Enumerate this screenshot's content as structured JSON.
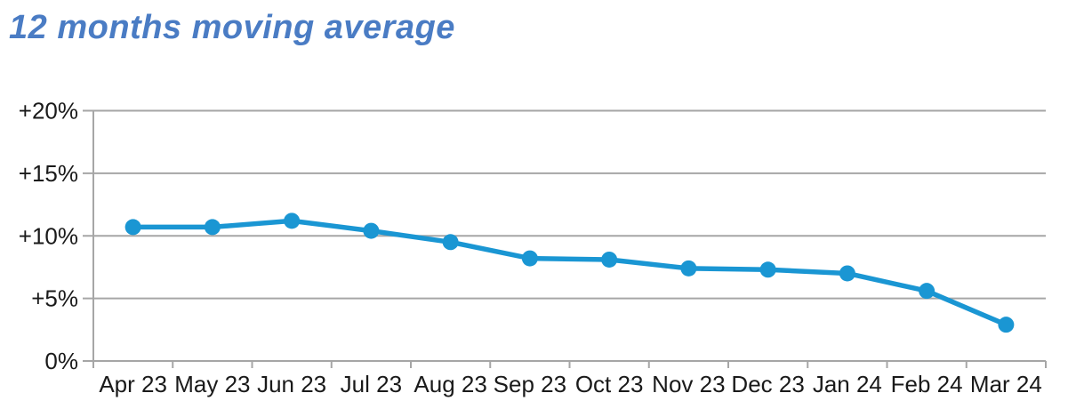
{
  "title": {
    "text": "12 months moving average",
    "color": "#4A7CC4"
  },
  "chart_data": {
    "type": "line",
    "title": "12 months moving average",
    "categories": [
      "Apr 23",
      "May 23",
      "Jun 23",
      "Jul 23",
      "Aug 23",
      "Sep 23",
      "Oct 23",
      "Nov 23",
      "Dec 23",
      "Jan 24",
      "Feb 24",
      "Mar 24"
    ],
    "series": [
      {
        "name": "12 months moving average",
        "values": [
          10.7,
          10.7,
          11.2,
          10.4,
          9.5,
          8.2,
          8.1,
          7.4,
          7.3,
          7.0,
          5.6,
          2.9
        ]
      }
    ],
    "ylim": [
      0,
      20
    ],
    "yticks": [
      0,
      5,
      10,
      15,
      20
    ],
    "ytick_labels": [
      "0%",
      "+5%",
      "+10%",
      "+15%",
      "+20%"
    ],
    "xlabel": "",
    "ylabel": "",
    "grid": "horizontal",
    "legend": "none",
    "marker": "circle",
    "colors": {
      "line": "#1A96D3",
      "marker": "#1A96D3",
      "gridline": "#A6A6A6",
      "axis": "#A6A6A6",
      "tick_label": "#1A1A1A"
    }
  }
}
